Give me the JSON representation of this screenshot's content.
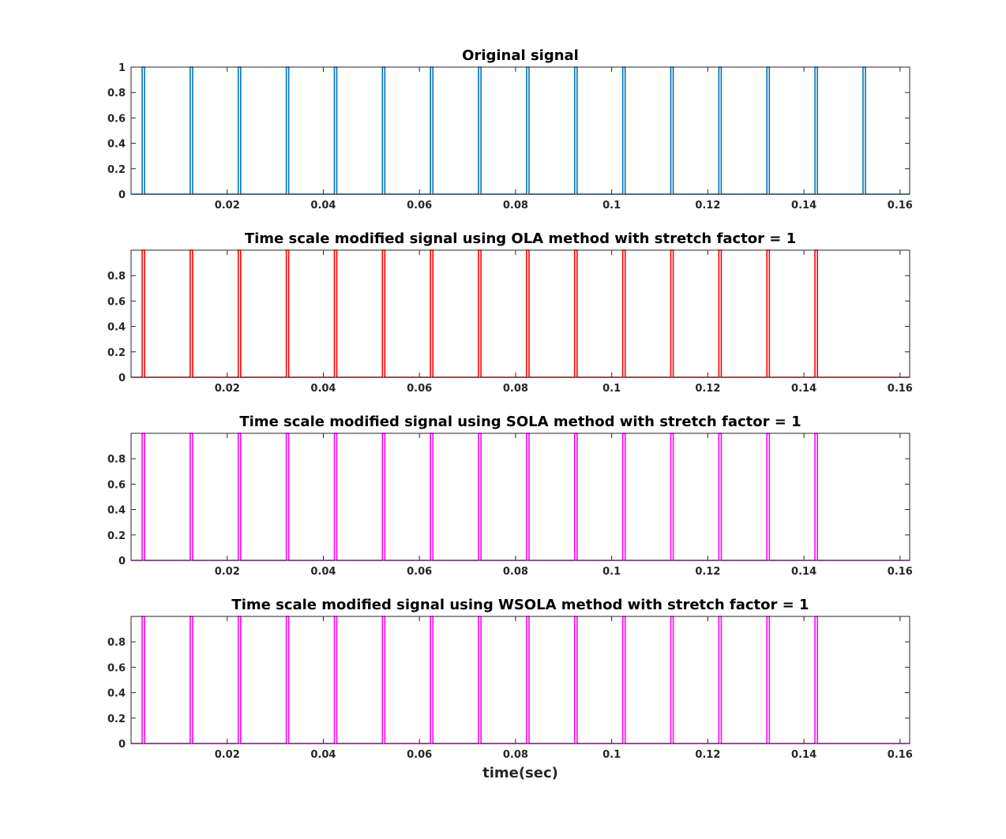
{
  "chart_data": [
    {
      "type": "line",
      "title": "Original signal",
      "xlabel": "",
      "ylabel": "",
      "xlim": [
        0,
        0.162
      ],
      "ylim": [
        0,
        1
      ],
      "xticks": [
        0.02,
        0.04,
        0.06,
        0.08,
        0.1,
        0.12,
        0.14,
        0.16
      ],
      "xtick_labels": [
        "0.02",
        "0.04",
        "0.06",
        "0.08",
        "0.1",
        "0.12",
        "0.14",
        "0.16"
      ],
      "yticks": [
        0,
        0.2,
        0.4,
        0.6,
        0.8,
        1
      ],
      "ytick_labels": [
        "0",
        "0.2",
        "0.4",
        "0.6",
        "0.8",
        "1"
      ],
      "grid": false,
      "series": [
        {
          "color": "#0072BD",
          "pulse_amplitude": 1,
          "pulse_width": 0.0005,
          "pulse_starts": [
            0.0023,
            0.0123,
            0.0223,
            0.0323,
            0.0423,
            0.0523,
            0.0623,
            0.0723,
            0.0823,
            0.0923,
            0.1023,
            0.1123,
            0.1223,
            0.1323,
            0.1423,
            0.1523
          ]
        }
      ]
    },
    {
      "type": "line",
      "title": "Time scale modified signal using OLA method with stretch factor = 1",
      "xlabel": "",
      "ylabel": "",
      "xlim": [
        0,
        0.162
      ],
      "ylim": [
        0,
        1
      ],
      "xticks": [
        0.02,
        0.04,
        0.06,
        0.08,
        0.1,
        0.12,
        0.14,
        0.16
      ],
      "xtick_labels": [
        "0.02",
        "0.04",
        "0.06",
        "0.08",
        "0.1",
        "0.12",
        "0.14",
        "0.16"
      ],
      "yticks": [
        0,
        0.2,
        0.4,
        0.6,
        0.8
      ],
      "ytick_labels": [
        "0",
        "0.2",
        "0.4",
        "0.6",
        "0.8"
      ],
      "grid": false,
      "series": [
        {
          "color": "#FF0000",
          "pulse_amplitude": 1,
          "pulse_width": 0.0005,
          "pulse_starts": [
            0.0023,
            0.0123,
            0.0223,
            0.0323,
            0.0423,
            0.0523,
            0.0623,
            0.0723,
            0.0823,
            0.0923,
            0.1023,
            0.1123,
            0.1223,
            0.1323,
            0.1423
          ]
        }
      ]
    },
    {
      "type": "line",
      "title": "Time scale modified signal using SOLA method with stretch factor = 1",
      "xlabel": "",
      "ylabel": "",
      "xlim": [
        0,
        0.162
      ],
      "ylim": [
        0,
        1
      ],
      "xticks": [
        0.02,
        0.04,
        0.06,
        0.08,
        0.1,
        0.12,
        0.14,
        0.16
      ],
      "xtick_labels": [
        "0.02",
        "0.04",
        "0.06",
        "0.08",
        "0.1",
        "0.12",
        "0.14",
        "0.16"
      ],
      "yticks": [
        0,
        0.2,
        0.4,
        0.6,
        0.8
      ],
      "ytick_labels": [
        "0",
        "0.2",
        "0.4",
        "0.6",
        "0.8"
      ],
      "grid": false,
      "series": [
        {
          "color": "#FF00FF",
          "pulse_amplitude": 1,
          "pulse_width": 0.0005,
          "pulse_starts": [
            0.0023,
            0.0123,
            0.0223,
            0.0323,
            0.0423,
            0.0523,
            0.0623,
            0.0723,
            0.0823,
            0.0923,
            0.1023,
            0.1123,
            0.1223,
            0.1323,
            0.1423
          ]
        }
      ]
    },
    {
      "type": "line",
      "title": "Time scale modified signal using WSOLA method with stretch factor = 1",
      "xlabel": "time(sec)",
      "ylabel": "",
      "xlim": [
        0,
        0.162
      ],
      "ylim": [
        0,
        1
      ],
      "xticks": [
        0.02,
        0.04,
        0.06,
        0.08,
        0.1,
        0.12,
        0.14,
        0.16
      ],
      "xtick_labels": [
        "0.02",
        "0.04",
        "0.06",
        "0.08",
        "0.1",
        "0.12",
        "0.14",
        "0.16"
      ],
      "yticks": [
        0,
        0.2,
        0.4,
        0.6,
        0.8
      ],
      "ytick_labels": [
        "0",
        "0.2",
        "0.4",
        "0.6",
        "0.8"
      ],
      "grid": false,
      "series": [
        {
          "color": "#FF00FF",
          "pulse_amplitude": 1,
          "pulse_width": 0.0005,
          "pulse_starts": [
            0.0023,
            0.0123,
            0.0223,
            0.0323,
            0.0423,
            0.0523,
            0.0623,
            0.0723,
            0.0823,
            0.0923,
            0.1023,
            0.1123,
            0.1223,
            0.1323,
            0.1423
          ]
        }
      ]
    }
  ]
}
